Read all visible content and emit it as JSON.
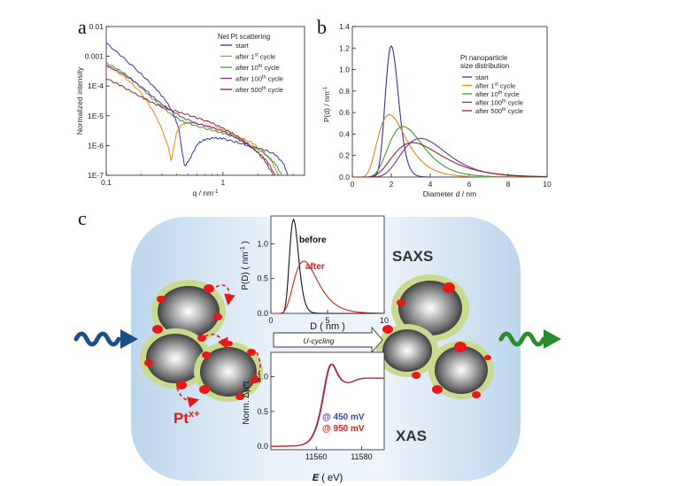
{
  "panels": {
    "a": {
      "letter": "a",
      "chart_data": {
        "type": "line",
        "xscale": "log",
        "yscale": "log",
        "xlim": [
          0.1,
          5
        ],
        "ylim": [
          1e-07,
          0.01
        ],
        "xticks": [
          {
            "v": 0.1,
            "label": "0.1"
          },
          {
            "v": 1,
            "label": "1"
          }
        ],
        "yticks": [
          {
            "v": 0.01,
            "label": "0.01"
          },
          {
            "v": 0.001,
            "label": "0.001"
          },
          {
            "v": 0.0001,
            "label": "1E-4"
          },
          {
            "v": 1e-05,
            "label": "1E-5"
          },
          {
            "v": 1e-06,
            "label": "1E-6"
          },
          {
            "v": 1e-07,
            "label": "1E-7"
          }
        ],
        "xlabel_main": "q / nm",
        "xlabel_sup": "-1",
        "ylabel": "Normalized intensity",
        "legend_title": "Net Pt scattering",
        "series": [
          {
            "name": "start",
            "sup": "",
            "color": "#2e37a8",
            "x": [
              0.1,
              0.14,
              0.2,
              0.26,
              0.32,
              0.38,
              0.42,
              0.44,
              0.47,
              0.52,
              0.6,
              0.7,
              0.85,
              1.0,
              1.3,
              1.7,
              2.2,
              2.8,
              3.3,
              3.6
            ],
            "y": [
              0.0028,
              0.0009,
              0.00025,
              9e-05,
              3.5e-05,
              1.1e-05,
              3.5e-06,
              9e-07,
              2e-07,
              3.5e-07,
              1.1e-06,
              1.6e-06,
              1.8e-06,
              1.7e-06,
              1.3e-06,
              9.5e-07,
              7.5e-07,
              5e-07,
              2.5e-07,
              1e-07
            ]
          },
          {
            "name": "after 1",
            "sup": "st",
            "color": "#e8861a",
            "x": [
              0.1,
              0.14,
              0.2,
              0.26,
              0.3,
              0.34,
              0.36,
              0.38,
              0.4,
              0.44,
              0.5,
              0.58,
              0.7,
              0.9,
              1.1,
              1.4,
              1.8,
              2.2,
              2.6,
              3.0
            ],
            "y": [
              0.0005,
              0.00022,
              6e-05,
              1.2e-05,
              3.5e-06,
              9e-07,
              3e-07,
              9e-07,
              2.8e-06,
              5e-06,
              6e-06,
              5.5e-06,
              4.8e-06,
              3.8e-06,
              2.8e-06,
              1.9e-06,
              1.2e-06,
              6.5e-07,
              3e-07,
              1e-07
            ]
          },
          {
            "name": "after 10",
            "sup": "th",
            "color": "#3c9a35",
            "x": [
              0.1,
              0.13,
              0.17,
              0.22,
              0.28,
              0.35,
              0.45,
              0.6,
              0.8,
              1.0,
              1.3,
              1.6,
              2.0,
              2.4,
              2.8,
              3.2
            ],
            "y": [
              0.0006,
              0.00035,
              0.00016,
              6e-05,
              2.5e-05,
              1.2e-05,
              6.5e-06,
              4.5e-06,
              3.3e-06,
              2.6e-06,
              1.8e-06,
              1.2e-06,
              7.5e-07,
              4.5e-07,
              2.5e-07,
              1e-07
            ]
          },
          {
            "name": "after 100",
            "sup": "th",
            "color": "#7b2d8e",
            "x": [
              0.1,
              0.13,
              0.17,
              0.22,
              0.28,
              0.36,
              0.46,
              0.6,
              0.8,
              1.0,
              1.3,
              1.6,
              2.0,
              2.4,
              2.8
            ],
            "y": [
              0.0005,
              0.0003,
              0.00015,
              7e-05,
              3e-05,
              1.5e-05,
              8.5e-06,
              5.5e-06,
              4e-06,
              3e-06,
              1.8e-06,
              1.1e-06,
              6e-07,
              3e-07,
              1e-07
            ]
          },
          {
            "name": "after 500",
            "sup": "th",
            "color": "#8c2a22",
            "x": [
              0.1,
              0.13,
              0.17,
              0.22,
              0.28,
              0.36,
              0.46,
              0.6,
              0.8,
              1.0,
              1.2,
              1.5,
              1.9,
              2.3,
              2.7
            ],
            "y": [
              0.00018,
              0.00011,
              6e-05,
              3.5e-05,
              2.2e-05,
              1.6e-05,
              1.2e-05,
              8.5e-06,
              5.8e-06,
              3.8e-06,
              2.6e-06,
              1.5e-06,
              7e-07,
              3e-07,
              1e-07
            ]
          }
        ],
        "legend_suffix": " cycle"
      }
    },
    "b": {
      "letter": "b",
      "chart_data": {
        "type": "line",
        "xlim": [
          0,
          10
        ],
        "ylim": [
          0,
          1.4
        ],
        "xticks": [
          0,
          2,
          4,
          6,
          8,
          10
        ],
        "yticks": [
          0.0,
          0.2,
          0.4,
          0.6,
          0.8,
          1.0,
          1.2,
          1.4
        ],
        "ytick_labels": [
          "0.0",
          "0.2",
          "0.4",
          "0.6",
          "0.8",
          "1.0",
          "1.2",
          "1.4"
        ],
        "xlabel": "Diameter d / nm",
        "ylabel_main": "P(d) / nm",
        "ylabel_sup": "-1",
        "legend_title_1": "Pt nanoparticle",
        "legend_title_2": "size distribution",
        "series": [
          {
            "name": "start",
            "sup": "",
            "color": "#2e37a8",
            "mode": 2.0,
            "sigma": 0.17,
            "peak": 1.22
          },
          {
            "name": "after 1",
            "sup": "st",
            "color": "#e8861a",
            "mode": 1.9,
            "sigma": 0.38,
            "peak": 0.58
          },
          {
            "name": "after 10",
            "sup": "th",
            "color": "#3c9a35",
            "mode": 2.6,
            "sigma": 0.34,
            "peak": 0.47
          },
          {
            "name": "after 100",
            "sup": "th",
            "color": "#7b2d8e",
            "mode": 3.5,
            "sigma": 0.33,
            "peak": 0.36
          },
          {
            "name": "after 500",
            "sup": "th",
            "color": "#8c2a22",
            "mode": 3.1,
            "sigma": 0.4,
            "peak": 0.32
          }
        ],
        "legend_suffix": " cycle"
      }
    },
    "c": {
      "letter": "c",
      "label_saxs": "SAXS",
      "label_xas": "XAS",
      "label_pt_main": "Pt",
      "label_pt_sup": "x+",
      "arrow_label": "U-cycling",
      "inset_top": {
        "chart_data": {
          "type": "line",
          "xlim": [
            0,
            10
          ],
          "ylim": [
            0,
            1.4
          ],
          "xticks": [
            0,
            5,
            10
          ],
          "yticks": [
            0.0,
            0.5,
            1.0
          ],
          "ytick_labels": [
            "0.0",
            "0.5",
            "1.0"
          ],
          "xlabel": "D ( nm )",
          "ylabel": "P(D) ( nm",
          "ylabel_sup": "-1",
          "ylabel_close": " )",
          "series": [
            {
              "name": "before",
              "color": "#111111",
              "mode": 2.0,
              "sigma": 0.2,
              "peak": 1.35
            },
            {
              "name": "after",
              "color": "#e01a1a",
              "mode": 2.9,
              "sigma": 0.36,
              "peak": 0.75
            }
          ]
        }
      },
      "inset_bottom": {
        "chart_data": {
          "type": "line",
          "xlim": [
            11540,
            11590
          ],
          "ylim": [
            -0.05,
            1.35
          ],
          "xticks": [
            11560,
            11580
          ],
          "xtick_labels": [
            "11560",
            "11580"
          ],
          "yticks": [
            0.0,
            0.5,
            1.0
          ],
          "ytick_labels": [
            "0.0",
            "0.5",
            "1.0"
          ],
          "xlabel_italic": "E",
          "xlabel_rest": " ( eV)",
          "ylabel": "Norm. Δμ*t",
          "series": [
            {
              "name": "@ 450 mV",
              "color": "#3d3db8"
            },
            {
              "name": "@ 950 mV",
              "color": "#e01a1a"
            }
          ]
        }
      }
    }
  }
}
